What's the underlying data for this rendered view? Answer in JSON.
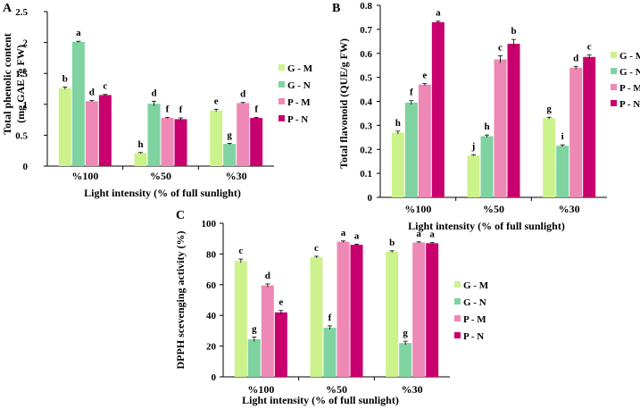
{
  "series_legend": [
    {
      "key": "GM",
      "label": "G - M",
      "color": "#ccf28c"
    },
    {
      "key": "GN",
      "label": "G - N",
      "color": "#7fd3a0"
    },
    {
      "key": "PM",
      "label": "P - M",
      "color": "#ee88b4"
    },
    {
      "key": "PN",
      "label": "P - N",
      "color": "#c8006e"
    }
  ],
  "chart_data": [
    {
      "type": "bar",
      "panel": "A",
      "ylabel_line1": "Total phenolic content",
      "ylabel_line2": "(mg GAE /g FW)",
      "xlabel": "Light intensity (% of full sunlight)",
      "categories": [
        "%100",
        "%50",
        "%30"
      ],
      "ylim": [
        0,
        2.5
      ],
      "yticks": [
        "0",
        "0.5",
        "1",
        "1.5",
        "2",
        "2.5"
      ],
      "series": [
        {
          "name": "G - M",
          "values": [
            1.26,
            0.21,
            0.9
          ],
          "errors": [
            0.02,
            0.01,
            0.02
          ],
          "letters": [
            "b",
            "h",
            "e"
          ]
        },
        {
          "name": "G - N",
          "values": [
            2.01,
            1.01,
            0.36
          ],
          "errors": [
            0.01,
            0.04,
            0.01
          ],
          "letters": [
            "a",
            "d",
            "g"
          ]
        },
        {
          "name": "P - M",
          "values": [
            1.05,
            0.78,
            1.02
          ],
          "errors": [
            0.01,
            0.01,
            0.01
          ],
          "letters": [
            "d",
            "f",
            "d"
          ]
        },
        {
          "name": "P - N",
          "values": [
            1.15,
            0.76,
            0.78
          ],
          "errors": [
            0.01,
            0.02,
            0.01
          ],
          "letters": [
            "c",
            "f",
            "f"
          ]
        }
      ]
    },
    {
      "type": "bar",
      "panel": "B",
      "ylabel_line1": "Total flavonoid (QUE/g FW)",
      "ylabel_line2": "",
      "xlabel": "Light intensity (% of full sunlight)",
      "categories": [
        "%100",
        "%50",
        "%30"
      ],
      "ylim": [
        0,
        0.8
      ],
      "yticks": [
        "0",
        "0.1",
        "0.2",
        "0.3",
        "0.4",
        "0.5",
        "0.6",
        "0.7",
        "0.8"
      ],
      "series": [
        {
          "name": "G - M",
          "values": [
            0.27,
            0.175,
            0.33
          ],
          "errors": [
            0.006,
            0.003,
            0.004
          ],
          "letters": [
            "h",
            "j",
            "g"
          ]
        },
        {
          "name": "G - N",
          "values": [
            0.395,
            0.255,
            0.215
          ],
          "errors": [
            0.008,
            0.005,
            0.004
          ],
          "letters": [
            "f",
            "h",
            "i"
          ]
        },
        {
          "name": "P - M",
          "values": [
            0.47,
            0.575,
            0.54
          ],
          "errors": [
            0.004,
            0.015,
            0.006
          ],
          "letters": [
            "e",
            "c",
            "d"
          ]
        },
        {
          "name": "P - N",
          "values": [
            0.73,
            0.64,
            0.585
          ],
          "errors": [
            0.004,
            0.018,
            0.008
          ],
          "letters": [
            "a",
            "b",
            "c"
          ]
        }
      ]
    },
    {
      "type": "bar",
      "panel": "C",
      "ylabel_line1": "DPPH scevenging activity (%)",
      "ylabel_line2": "",
      "xlabel": "Light intensity (% of full sunlight)",
      "categories": [
        "%100",
        "%50",
        "%30"
      ],
      "ylim": [
        0,
        100
      ],
      "yticks": [
        "0",
        "20",
        "40",
        "60",
        "80",
        "100"
      ],
      "series": [
        {
          "name": "G - M",
          "values": [
            75.5,
            78,
            81.5
          ],
          "errors": [
            1.2,
            0.5,
            0.6
          ],
          "letters": [
            "c",
            "c",
            "b"
          ]
        },
        {
          "name": "G - N",
          "values": [
            24.5,
            32,
            22
          ],
          "errors": [
            1.5,
            1.2,
            1.2
          ],
          "letters": [
            "g",
            "f",
            "g"
          ]
        },
        {
          "name": "P - M",
          "values": [
            59.5,
            88,
            87.5
          ],
          "errors": [
            1.0,
            0.5,
            0.4
          ],
          "letters": [
            "d",
            "a",
            "a"
          ]
        },
        {
          "name": "P - N",
          "values": [
            42,
            86,
            87
          ],
          "errors": [
            1.2,
            0.4,
            0.4
          ],
          "letters": [
            "e",
            "a",
            "a"
          ]
        }
      ]
    }
  ]
}
